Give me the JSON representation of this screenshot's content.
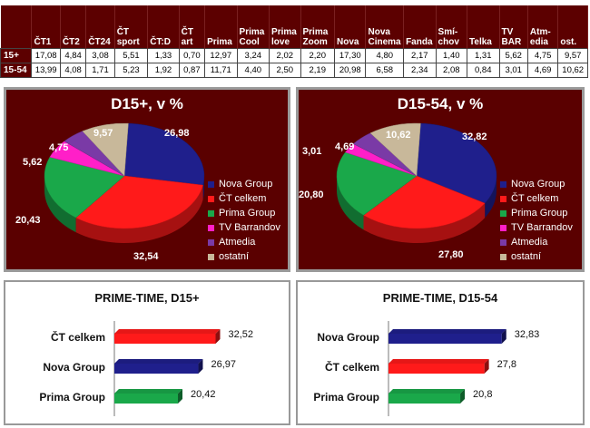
{
  "table": {
    "headers": [
      "",
      "ČT1",
      "ČT2",
      "ČT24",
      "ČT sport",
      "ČT:D",
      "ČT art",
      "Prima",
      "Prima Cool",
      "Prima love",
      "Prima Zoom",
      "Nova",
      "Nova Cinema",
      "Fanda",
      "Smí- chov",
      "Telka",
      "TV BAR",
      "Atm- edia",
      "ost."
    ],
    "rows": [
      {
        "label": "15+",
        "cells": [
          "17,08",
          "4,84",
          "3,08",
          "5,51",
          "1,33",
          "0,70",
          "12,97",
          "3,24",
          "2,02",
          "2,20",
          "17,30",
          "4,80",
          "2,17",
          "1,40",
          "1,31",
          "5,62",
          "4,75",
          "9,57"
        ]
      },
      {
        "label": "15-54",
        "cells": [
          "13,99",
          "4,08",
          "1,71",
          "5,23",
          "1,92",
          "0,87",
          "11,71",
          "4,40",
          "2,50",
          "2,19",
          "20,98",
          "6,58",
          "2,34",
          "2,08",
          "0,84",
          "3,01",
          "4,69",
          "10,62"
        ]
      }
    ]
  },
  "chart_data": [
    {
      "type": "pie",
      "title": "D15+, v %",
      "labels": [
        "Nova Group",
        "ČT celkem",
        "Prima Group",
        "TV Barrandov",
        "Atmedia",
        "ostatní"
      ],
      "values": [
        26.98,
        32.54,
        20.43,
        5.62,
        4.75,
        9.57
      ],
      "value_labels": [
        "26,98",
        "32,54",
        "20,43",
        "5,62",
        "4,75",
        "9,57"
      ],
      "colors": [
        "#1f1f8c",
        "#ff1a1a",
        "#1aa84a",
        "#ff1fc8",
        "#7a3aa6",
        "#c8b89a"
      ],
      "legend": "right"
    },
    {
      "type": "pie",
      "title": "D15-54, v %",
      "labels": [
        "Nova Group",
        "ČT celkem",
        "Prima Group",
        "TV Barrandov",
        "Atmedia",
        "ostatní"
      ],
      "values": [
        32.82,
        27.8,
        20.8,
        3.01,
        4.69,
        10.62
      ],
      "value_labels": [
        "32,82",
        "27,80",
        "20,80",
        "3,01",
        "4,69",
        "10,62"
      ],
      "colors": [
        "#1f1f8c",
        "#ff1a1a",
        "#1aa84a",
        "#ff1fc8",
        "#7a3aa6",
        "#c8b89a"
      ],
      "legend": "right"
    },
    {
      "type": "bar",
      "orientation": "horizontal",
      "title": "PRIME-TIME, D15+",
      "categories": [
        "ČT celkem",
        "Nova Group",
        "Prima Group"
      ],
      "values": [
        32.52,
        26.97,
        20.42
      ],
      "value_labels": [
        "32,52",
        "26,97",
        "20,42"
      ],
      "colors": [
        "#ff1a1a",
        "#1f1f8c",
        "#1aa84a"
      ],
      "xlim": [
        0,
        35
      ]
    },
    {
      "type": "bar",
      "orientation": "horizontal",
      "title": "PRIME-TIME, D15-54",
      "categories": [
        "Nova Group",
        "ČT celkem",
        "Prima Group"
      ],
      "values": [
        32.83,
        27.8,
        20.8
      ],
      "value_labels": [
        "32,83",
        "27,8",
        "20,8"
      ],
      "colors": [
        "#1f1f8c",
        "#ff1a1a",
        "#1aa84a"
      ],
      "xlim": [
        0,
        35
      ]
    }
  ]
}
